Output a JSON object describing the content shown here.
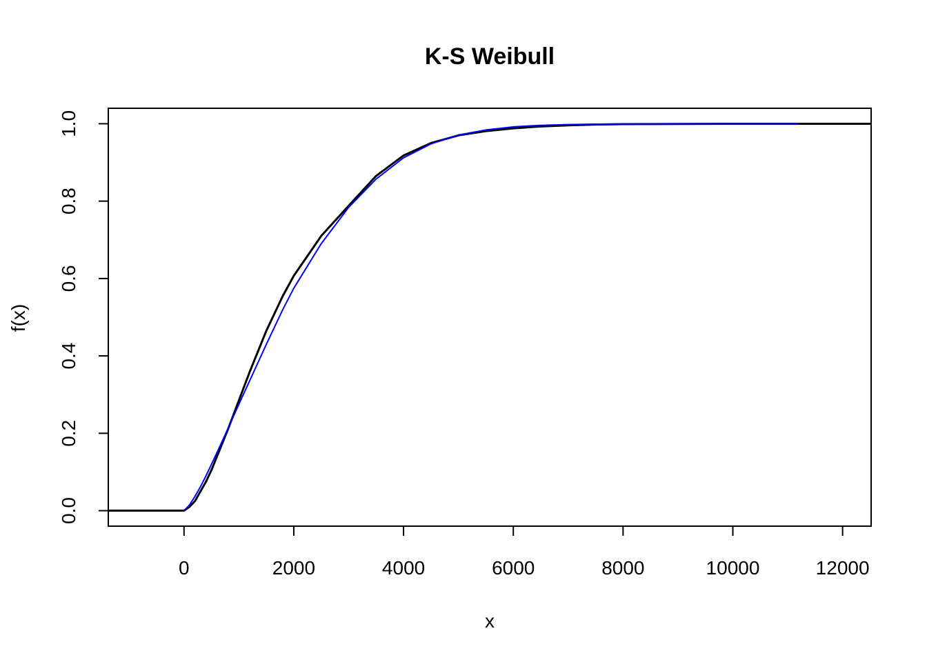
{
  "chart_data": {
    "type": "line",
    "title": "K-S Weibull",
    "xlabel": "x",
    "ylabel": "f(x)",
    "xlim": [
      -1380,
      12520
    ],
    "ylim": [
      -0.04,
      1.04
    ],
    "x_ticks": [
      0,
      2000,
      4000,
      6000,
      8000,
      10000,
      12000
    ],
    "x_tick_labels": [
      "0",
      "2000",
      "4000",
      "6000",
      "8000",
      "10000",
      "12000"
    ],
    "y_ticks": [
      0.0,
      0.2,
      0.4,
      0.6,
      0.8,
      1.0
    ],
    "y_tick_labels": [
      "0.0",
      "0.2",
      "0.4",
      "0.6",
      "0.8",
      "1.0"
    ],
    "grid": false,
    "legend": "none",
    "series": [
      {
        "color": "#000000",
        "style": "step",
        "x": [
          -1380,
          0,
          100,
          200,
          300,
          400,
          500,
          600,
          800,
          1000,
          1200,
          1500,
          1800,
          2000,
          2500,
          3000,
          3500,
          4000,
          4500,
          5000,
          5500,
          6000,
          6500,
          7000,
          7500,
          8000,
          9000,
          10000,
          11000,
          12000,
          12520
        ],
        "y": [
          0.0,
          0.0,
          0.01,
          0.025,
          0.05,
          0.075,
          0.105,
          0.14,
          0.21,
          0.285,
          0.36,
          0.465,
          0.555,
          0.607,
          0.71,
          0.788,
          0.865,
          0.918,
          0.95,
          0.97,
          0.981,
          0.988,
          0.993,
          0.996,
          0.998,
          0.999,
          0.9995,
          1.0,
          1.0,
          1.0,
          1.0
        ]
      },
      {
        "color": "#0000ff",
        "style": "line",
        "x": [
          0,
          100,
          200,
          300,
          400,
          600,
          800,
          1000,
          1200,
          1500,
          1800,
          2000,
          2500,
          3000,
          3500,
          4000,
          4500,
          5000,
          5500,
          6000,
          6500,
          7000,
          7500,
          8000,
          9000,
          10000,
          11200
        ],
        "y": [
          0.0,
          0.015,
          0.037,
          0.062,
          0.09,
          0.15,
          0.212,
          0.275,
          0.337,
          0.43,
          0.52,
          0.575,
          0.69,
          0.784,
          0.857,
          0.912,
          0.948,
          0.971,
          0.984,
          0.992,
          0.996,
          0.998,
          0.999,
          0.9995,
          1.0,
          1.0,
          1.0
        ]
      }
    ]
  }
}
